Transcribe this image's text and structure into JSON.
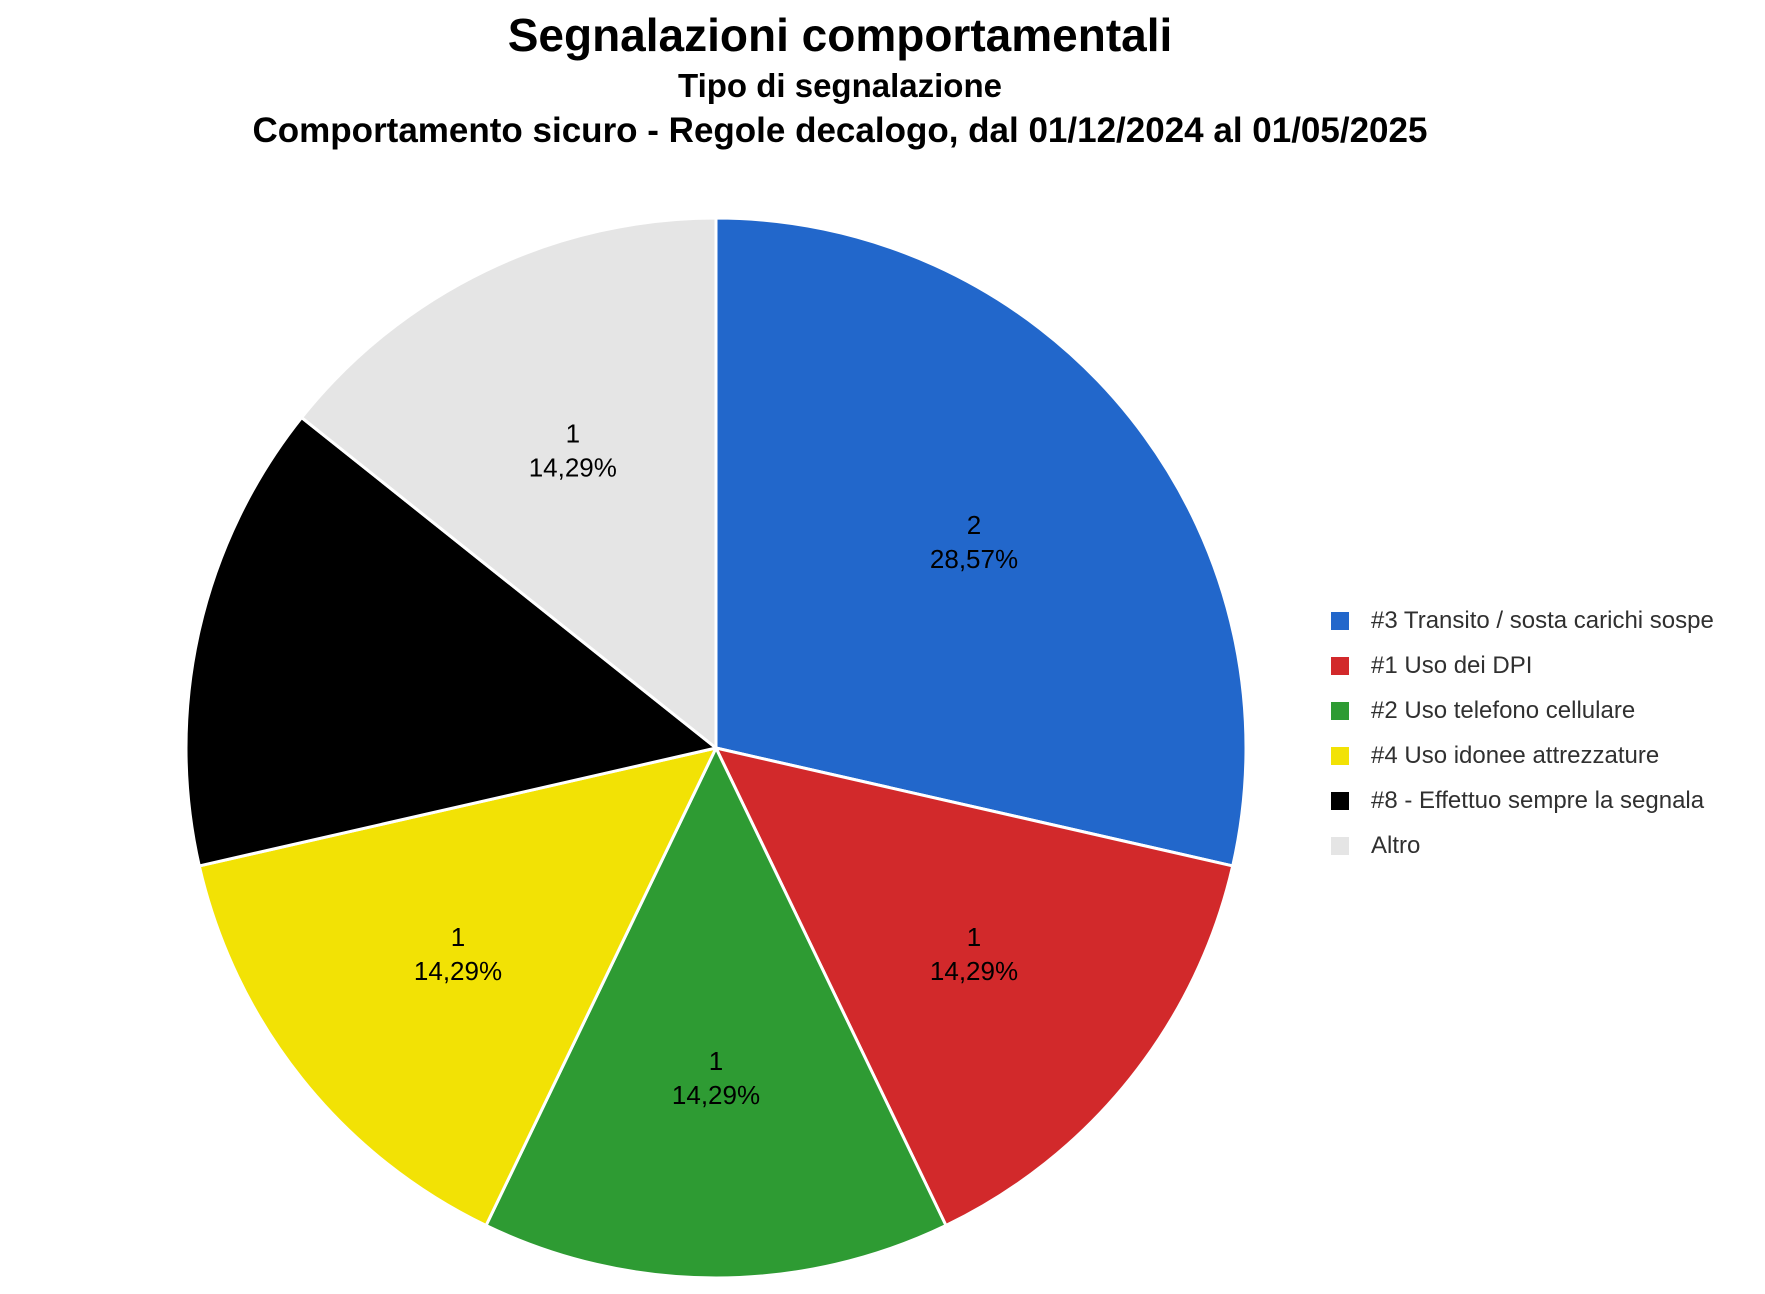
{
  "header": {
    "title": "Segnalazioni comportamentali",
    "subtitle": "Tipo di segnalazione",
    "period": "Comportamento sicuro - Regole decalogo, dal 01/12/2024 al 01/05/2025"
  },
  "chart_data": {
    "type": "pie",
    "title": "Segnalazioni comportamentali",
    "subtitle": "Tipo di segnalazione",
    "period": "Comportamento sicuro - Regole decalogo, dal 01/12/2024 al 01/05/2025",
    "total": 7,
    "start_angle_deg": 0,
    "direction": "clockwise",
    "legend_position": "right",
    "slice_label_color": "#000000",
    "slice_border_color": "#ffffff",
    "background_color": "#ffffff",
    "slices": [
      {
        "legend_label": "#3 Transito / sosta carichi sospe",
        "value": 2,
        "value_label": "2",
        "percent": 28.57,
        "percent_label": "28,57%",
        "color": "#2267CB"
      },
      {
        "legend_label": "#1 Uso dei DPI",
        "value": 1,
        "value_label": "1",
        "percent": 14.29,
        "percent_label": "14,29%",
        "color": "#D2292B"
      },
      {
        "legend_label": "#2 Uso telefono cellulare",
        "value": 1,
        "value_label": "1",
        "percent": 14.29,
        "percent_label": "14,29%",
        "color": "#2E9B33"
      },
      {
        "legend_label": "#4 Uso idonee attrezzature",
        "value": 1,
        "value_label": "1",
        "percent": 14.29,
        "percent_label": "14,29%",
        "color": "#F2E205"
      },
      {
        "legend_label": "#8 - Effettuo sempre la segnala",
        "value": 1,
        "value_label": "1",
        "percent": 14.29,
        "percent_label": "14,29%",
        "color": "#000000"
      },
      {
        "legend_label": "Altro",
        "value": 1,
        "value_label": "1",
        "percent": 14.29,
        "percent_label": "14,29%",
        "color": "#E5E5E5"
      }
    ]
  }
}
